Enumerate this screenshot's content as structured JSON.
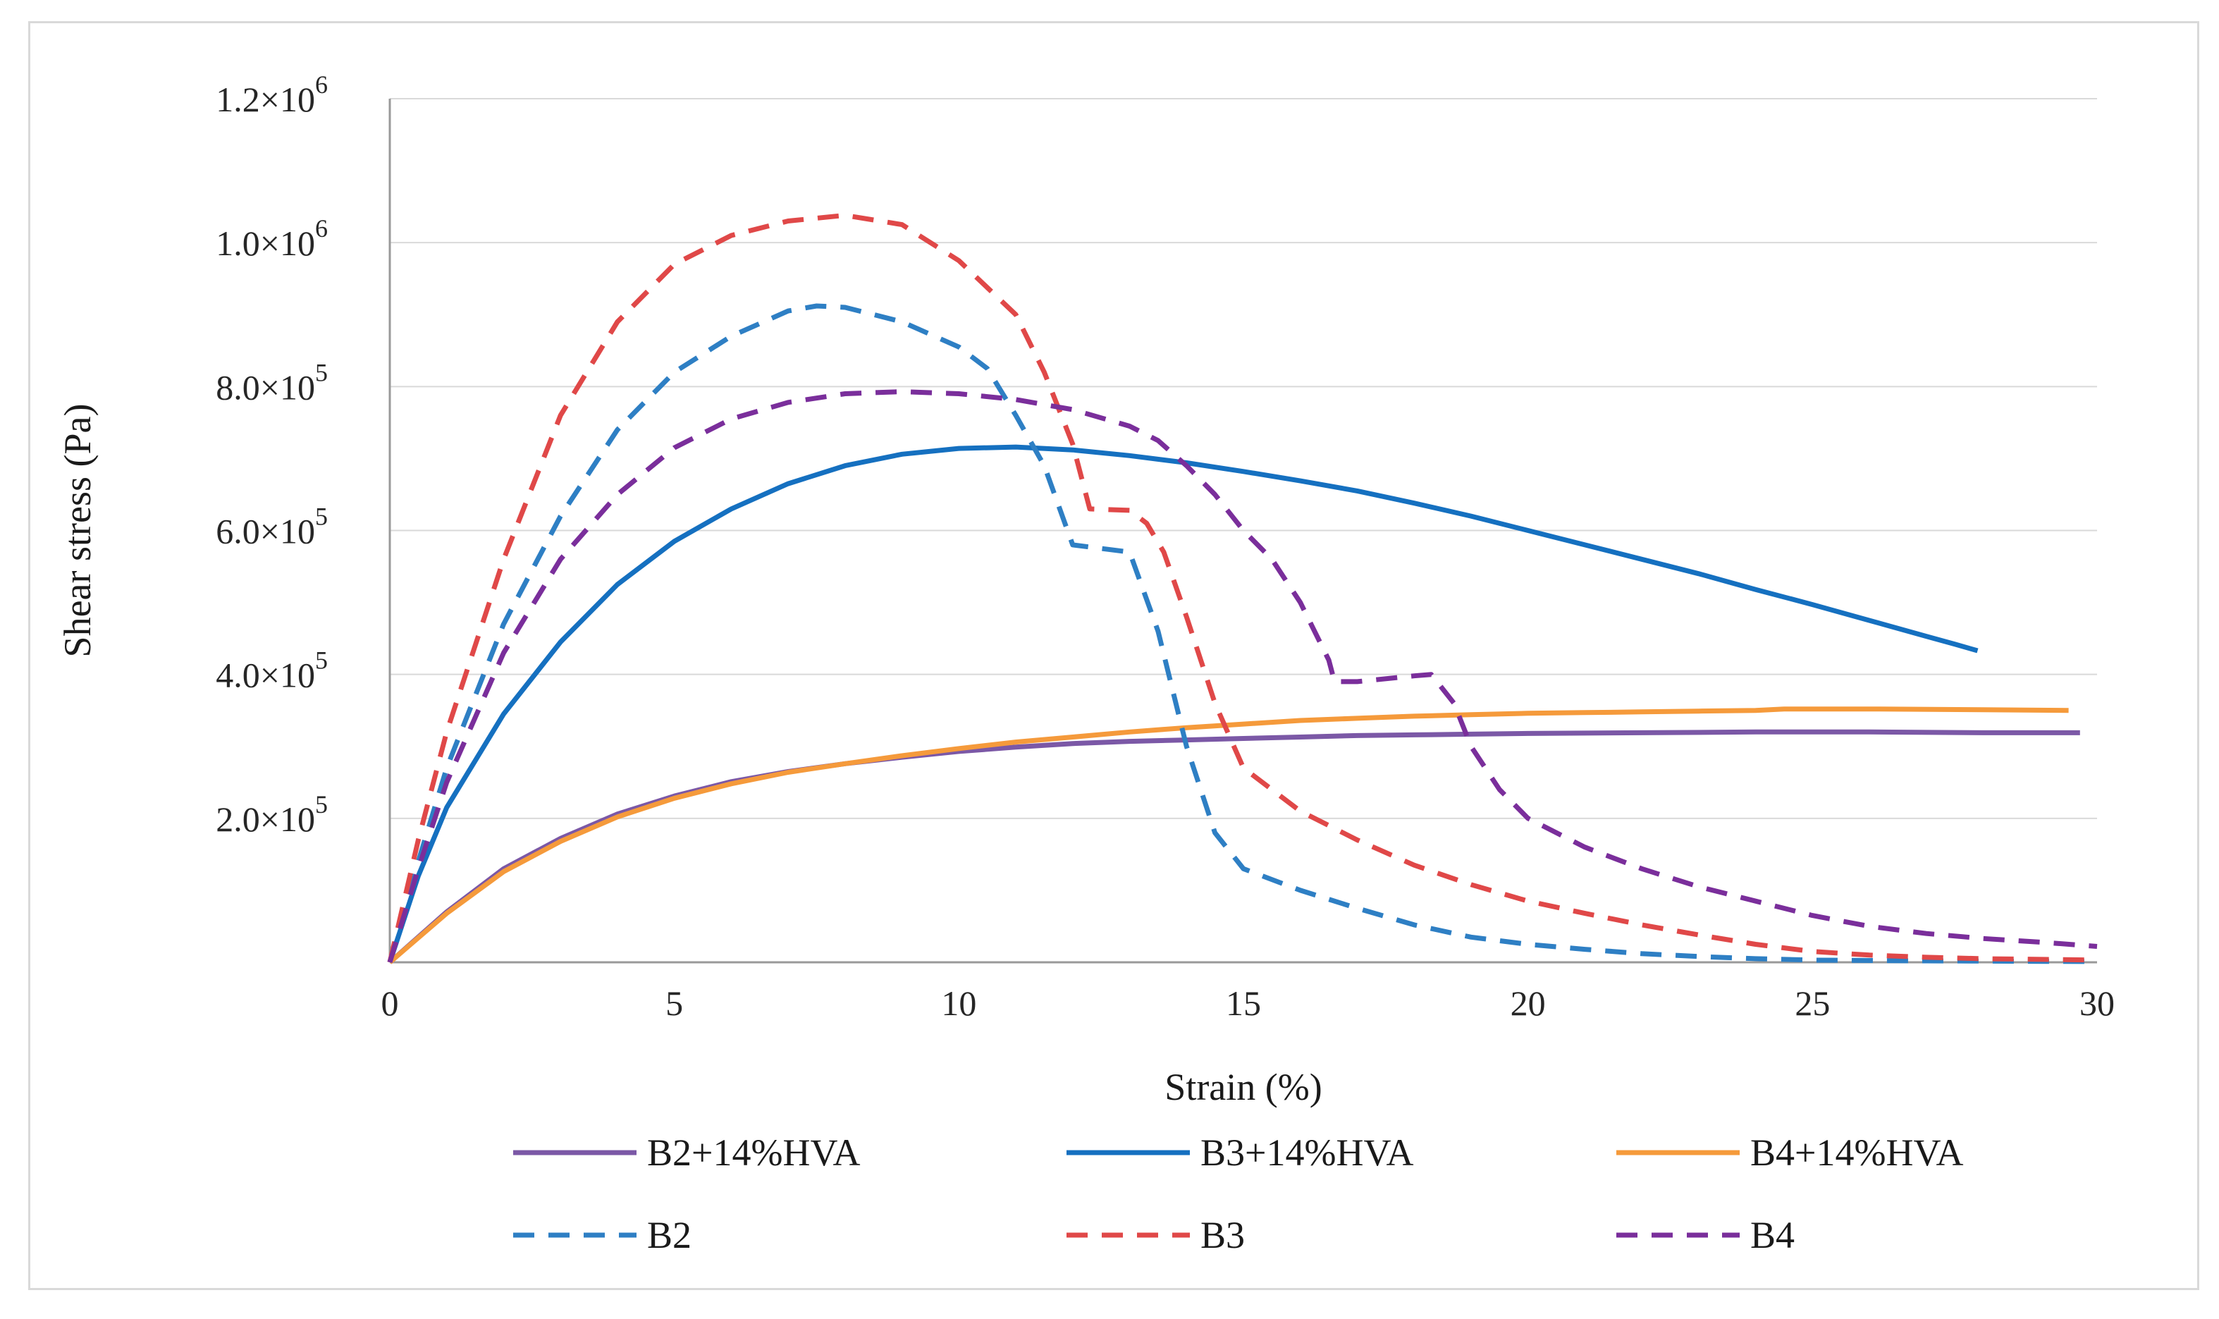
{
  "chart_data": {
    "type": "line",
    "title": "",
    "xlabel": "Strain (%)",
    "ylabel": "Shear  stress (Pa)",
    "xlim": [
      0,
      30
    ],
    "ylim": [
      0,
      1200000
    ],
    "grid": true,
    "legend_position": "bottom",
    "x_ticks": [
      {
        "value": 0,
        "label": "0"
      },
      {
        "value": 5,
        "label": "5"
      },
      {
        "value": 10,
        "label": "10"
      },
      {
        "value": 15,
        "label": "15"
      },
      {
        "value": 20,
        "label": "20"
      },
      {
        "value": 25,
        "label": "25"
      },
      {
        "value": 30,
        "label": "30"
      }
    ],
    "y_ticks": [
      {
        "value": 200000,
        "mantissa": "2.0",
        "times": "×10",
        "exp": "5"
      },
      {
        "value": 400000,
        "mantissa": "4.0",
        "times": "×10",
        "exp": "5"
      },
      {
        "value": 600000,
        "mantissa": "6.0",
        "times": "×10",
        "exp": "5"
      },
      {
        "value": 800000,
        "mantissa": "8.0",
        "times": "×10",
        "exp": "5"
      },
      {
        "value": 1000000,
        "mantissa": "1.0",
        "times": "×10",
        "exp": "6"
      },
      {
        "value": 1200000,
        "mantissa": "1.2",
        "times": "×10",
        "exp": "6"
      }
    ],
    "series": [
      {
        "name": "B2+14%HVA",
        "color": "#7b58a6",
        "dash": "solid",
        "points": [
          [
            0,
            0
          ],
          [
            1,
            70000
          ],
          [
            2,
            130000
          ],
          [
            3,
            172000
          ],
          [
            4,
            206000
          ],
          [
            5,
            231000
          ],
          [
            6,
            251000
          ],
          [
            7,
            265000
          ],
          [
            8,
            276000
          ],
          [
            9,
            285000
          ],
          [
            10,
            293000
          ],
          [
            11,
            299000
          ],
          [
            12,
            304000
          ],
          [
            13,
            307000
          ],
          [
            14,
            309000
          ],
          [
            15,
            311000
          ],
          [
            16,
            313000
          ],
          [
            17,
            315000
          ],
          [
            18,
            316000
          ],
          [
            19,
            317000
          ],
          [
            20,
            318000
          ],
          [
            22,
            319000
          ],
          [
            24,
            320000
          ],
          [
            26,
            320000
          ],
          [
            28,
            319000
          ],
          [
            29.7,
            319000
          ]
        ]
      },
      {
        "name": "B3+14%HVA",
        "color": "#1570c0",
        "dash": "solid",
        "points": [
          [
            0,
            0
          ],
          [
            0.5,
            120000
          ],
          [
            1,
            215000
          ],
          [
            2,
            345000
          ],
          [
            3,
            445000
          ],
          [
            4,
            525000
          ],
          [
            5,
            585000
          ],
          [
            6,
            630000
          ],
          [
            7,
            665000
          ],
          [
            8,
            690000
          ],
          [
            9,
            706000
          ],
          [
            10,
            714000
          ],
          [
            11,
            716000
          ],
          [
            12,
            712000
          ],
          [
            13,
            704000
          ],
          [
            14,
            694000
          ],
          [
            15,
            682000
          ],
          [
            16,
            669000
          ],
          [
            17,
            655000
          ],
          [
            18,
            638000
          ],
          [
            19,
            620000
          ],
          [
            20,
            600000
          ],
          [
            21,
            580000
          ],
          [
            22,
            560000
          ],
          [
            23,
            540000
          ],
          [
            24,
            518000
          ],
          [
            25,
            497000
          ],
          [
            26,
            475000
          ],
          [
            27,
            453000
          ],
          [
            27.5,
            442000
          ],
          [
            27.9,
            433000
          ]
        ]
      },
      {
        "name": "B4+14%HVA",
        "color": "#f59a3b",
        "dash": "solid",
        "points": [
          [
            0,
            0
          ],
          [
            1,
            68000
          ],
          [
            2,
            126000
          ],
          [
            3,
            168000
          ],
          [
            4,
            202000
          ],
          [
            5,
            228000
          ],
          [
            6,
            248000
          ],
          [
            7,
            264000
          ],
          [
            8,
            276000
          ],
          [
            9,
            287000
          ],
          [
            10,
            297000
          ],
          [
            11,
            306000
          ],
          [
            12,
            313000
          ],
          [
            13,
            320000
          ],
          [
            14,
            326000
          ],
          [
            15,
            331000
          ],
          [
            16,
            336000
          ],
          [
            17,
            339000
          ],
          [
            18,
            342000
          ],
          [
            19,
            344000
          ],
          [
            20,
            346000
          ],
          [
            21,
            347000
          ],
          [
            22,
            348000
          ],
          [
            23,
            349000
          ],
          [
            24,
            350000
          ],
          [
            24.5,
            352000
          ],
          [
            26,
            352000
          ],
          [
            28,
            351000
          ],
          [
            29.5,
            350000
          ]
        ]
      },
      {
        "name": "B2",
        "color": "#2e7fc4",
        "dash": "dashed",
        "points": [
          [
            0,
            0
          ],
          [
            0.5,
            140000
          ],
          [
            1,
            270000
          ],
          [
            2,
            470000
          ],
          [
            3,
            620000
          ],
          [
            4,
            740000
          ],
          [
            5,
            820000
          ],
          [
            6,
            870000
          ],
          [
            7,
            905000
          ],
          [
            7.5,
            912000
          ],
          [
            8,
            910000
          ],
          [
            9,
            890000
          ],
          [
            10,
            855000
          ],
          [
            10.5,
            825000
          ],
          [
            11,
            760000
          ],
          [
            11.5,
            690000
          ],
          [
            12,
            580000
          ],
          [
            12.5,
            575000
          ],
          [
            13,
            570000
          ],
          [
            13.5,
            460000
          ],
          [
            14,
            300000
          ],
          [
            14.5,
            180000
          ],
          [
            15,
            130000
          ],
          [
            16,
            100000
          ],
          [
            17,
            75000
          ],
          [
            18,
            52000
          ],
          [
            19,
            35000
          ],
          [
            20,
            25000
          ],
          [
            21,
            18000
          ],
          [
            22,
            12000
          ],
          [
            23,
            8000
          ],
          [
            24,
            5000
          ],
          [
            25,
            3000
          ],
          [
            27,
            2000
          ],
          [
            30,
            1000
          ]
        ]
      },
      {
        "name": "B3",
        "color": "#e04848",
        "dash": "dashed",
        "points": [
          [
            0,
            0
          ],
          [
            0.5,
            170000
          ],
          [
            1,
            320000
          ],
          [
            2,
            560000
          ],
          [
            3,
            760000
          ],
          [
            4,
            890000
          ],
          [
            5,
            970000
          ],
          [
            6,
            1010000
          ],
          [
            7,
            1030000
          ],
          [
            8,
            1038000
          ],
          [
            9,
            1025000
          ],
          [
            10,
            975000
          ],
          [
            11,
            900000
          ],
          [
            11.5,
            820000
          ],
          [
            12,
            720000
          ],
          [
            12.3,
            630000
          ],
          [
            13,
            628000
          ],
          [
            13.3,
            610000
          ],
          [
            13.6,
            570000
          ],
          [
            14,
            480000
          ],
          [
            14.5,
            360000
          ],
          [
            15,
            270000
          ],
          [
            16,
            210000
          ],
          [
            17,
            170000
          ],
          [
            18,
            135000
          ],
          [
            19,
            108000
          ],
          [
            20,
            85000
          ],
          [
            21,
            68000
          ],
          [
            22,
            52000
          ],
          [
            23,
            38000
          ],
          [
            24,
            25000
          ],
          [
            25,
            15000
          ],
          [
            26,
            10000
          ],
          [
            27,
            7000
          ],
          [
            28,
            5000
          ],
          [
            30,
            3000
          ]
        ]
      },
      {
        "name": "B4",
        "color": "#7a2e9b",
        "dash": "dashed",
        "points": [
          [
            0,
            0
          ],
          [
            0.5,
            130000
          ],
          [
            1,
            250000
          ],
          [
            2,
            430000
          ],
          [
            3,
            560000
          ],
          [
            4,
            650000
          ],
          [
            5,
            715000
          ],
          [
            6,
            755000
          ],
          [
            7,
            778000
          ],
          [
            8,
            790000
          ],
          [
            9,
            793000
          ],
          [
            10,
            790000
          ],
          [
            11,
            782000
          ],
          [
            12,
            768000
          ],
          [
            13,
            745000
          ],
          [
            13.5,
            725000
          ],
          [
            14,
            690000
          ],
          [
            14.5,
            650000
          ],
          [
            15,
            600000
          ],
          [
            15.5,
            560000
          ],
          [
            16,
            500000
          ],
          [
            16.5,
            420000
          ],
          [
            16.6,
            390000
          ],
          [
            17,
            390000
          ],
          [
            18,
            398000
          ],
          [
            18.3,
            400000
          ],
          [
            18.7,
            360000
          ],
          [
            19,
            300000
          ],
          [
            19.5,
            240000
          ],
          [
            20,
            200000
          ],
          [
            21,
            160000
          ],
          [
            22,
            130000
          ],
          [
            23,
            105000
          ],
          [
            24,
            85000
          ],
          [
            25,
            65000
          ],
          [
            26,
            50000
          ],
          [
            27,
            40000
          ],
          [
            28,
            33000
          ],
          [
            29,
            28000
          ],
          [
            30,
            22000
          ]
        ]
      }
    ]
  }
}
